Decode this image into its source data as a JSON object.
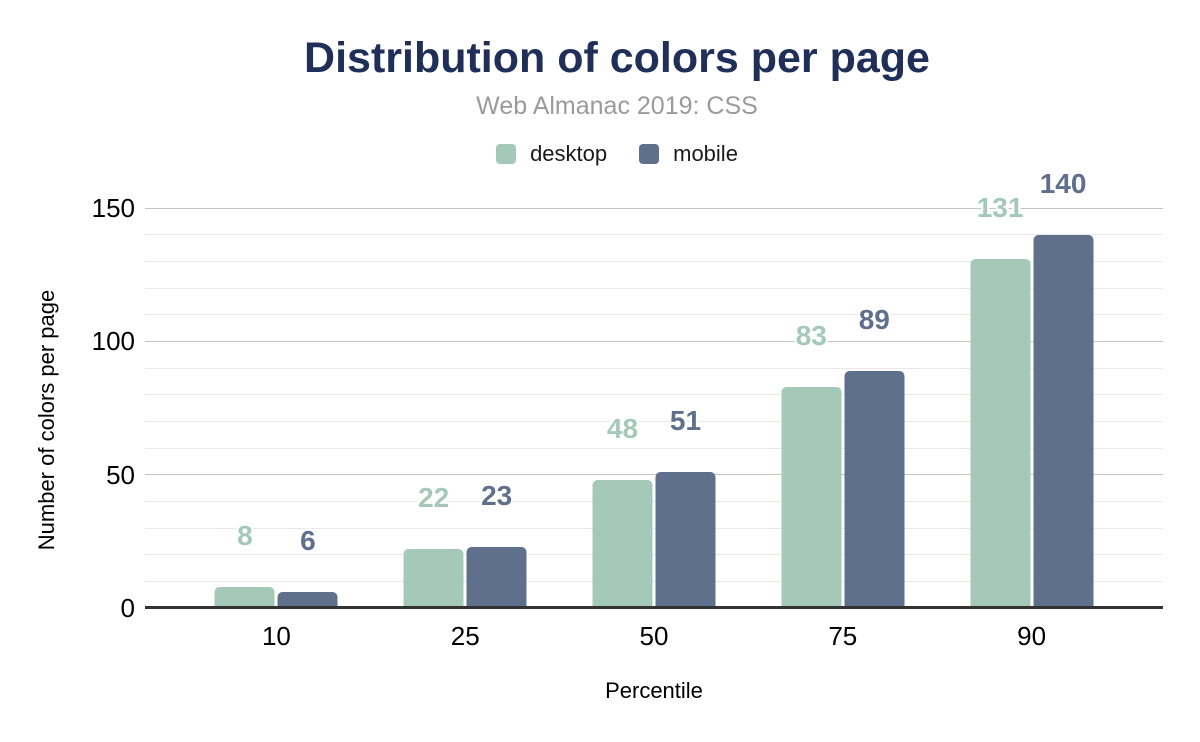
{
  "colors": {
    "title": "#1f2f58",
    "subtitle": "#9a9a9a",
    "desktop": "#a5c9b8",
    "mobile": "#5f708c"
  },
  "chart_data": {
    "type": "bar",
    "title": "Distribution of colors per page",
    "subtitle": "Web Almanac 2019: CSS",
    "categories": [
      "10",
      "25",
      "50",
      "75",
      "90"
    ],
    "series": [
      {
        "name": "desktop",
        "color": "#a5c9b8",
        "values": [
          8,
          22,
          48,
          83,
          131
        ]
      },
      {
        "name": "mobile",
        "color": "#5f708c",
        "values": [
          6,
          23,
          51,
          89,
          140
        ]
      }
    ],
    "xlabel": "Percentile",
    "ylabel": "Number of colors per page",
    "ylim": [
      0,
      150
    ],
    "yticks": [
      0,
      50,
      100,
      150
    ],
    "grid": {
      "show": true,
      "minor_step": 10,
      "major_step": 50
    },
    "legend_position": "top",
    "value_labels": true
  }
}
